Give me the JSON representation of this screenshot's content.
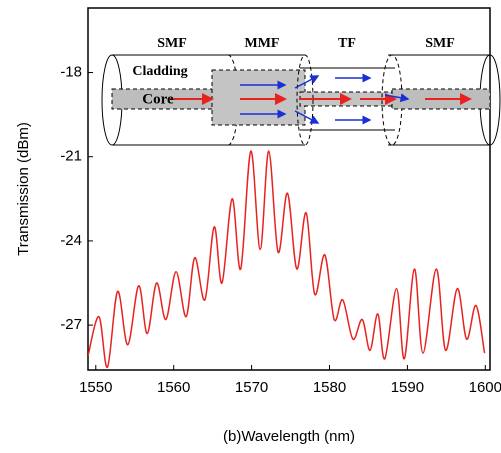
{
  "chart_data": {
    "type": "line",
    "xlabel": "(b)Wavelength (nm)",
    "ylabel": "Transmission (dBm)",
    "x": [
      1549.0,
      1550.4,
      1551.5,
      1552.8,
      1554.1,
      1555.5,
      1556.6,
      1557.8,
      1559.0,
      1560.3,
      1561.6,
      1562.7,
      1564.0,
      1565.2,
      1566.2,
      1567.5,
      1568.6,
      1569.9,
      1571.1,
      1572.2,
      1573.4,
      1574.6,
      1575.8,
      1577.0,
      1578.1,
      1579.4,
      1580.6,
      1581.7,
      1583.0,
      1584.2,
      1585.2,
      1586.2,
      1587.1,
      1588.6,
      1589.6,
      1590.9,
      1592.0,
      1593.7,
      1594.9,
      1596.4,
      1597.6,
      1598.8,
      1599.9
    ],
    "series": [
      {
        "name": "Transmission",
        "color": "#e8231f",
        "values": [
          -28.1,
          -26.7,
          -28.5,
          -25.8,
          -27.7,
          -25.6,
          -27.3,
          -25.5,
          -26.8,
          -25.1,
          -26.7,
          -24.6,
          -26.1,
          -23.5,
          -25.5,
          -22.5,
          -25.0,
          -20.8,
          -24.3,
          -20.8,
          -24.4,
          -22.3,
          -25.0,
          -23.0,
          -25.9,
          -24.5,
          -26.8,
          -26.1,
          -27.5,
          -26.8,
          -27.9,
          -26.6,
          -28.2,
          -25.7,
          -28.2,
          -25.0,
          -28.0,
          -25.0,
          -27.9,
          -25.7,
          -27.5,
          -26.3,
          -28.0
        ]
      }
    ],
    "xlim": [
      1549,
      1600.6
    ],
    "xticks": [
      1550,
      1560,
      1570,
      1580,
      1590,
      1600
    ],
    "ylim": [
      -28.6,
      -15.7
    ],
    "yticks": [
      -27,
      -24,
      -21,
      -18
    ],
    "annotations": [
      "SMF",
      "MMF",
      "TF",
      "SMF",
      "Cladding",
      "Core"
    ]
  }
}
